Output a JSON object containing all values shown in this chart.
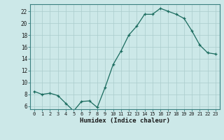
{
  "x": [
    0,
    1,
    2,
    3,
    4,
    5,
    6,
    7,
    8,
    9,
    10,
    11,
    12,
    13,
    14,
    15,
    16,
    17,
    18,
    19,
    20,
    21,
    22,
    23
  ],
  "y": [
    8.5,
    8.0,
    8.2,
    7.8,
    6.5,
    5.2,
    6.8,
    6.9,
    5.8,
    9.2,
    13.0,
    15.3,
    18.0,
    19.5,
    21.5,
    21.5,
    22.5,
    22.0,
    21.5,
    20.8,
    18.7,
    16.3,
    15.0,
    14.8
  ],
  "line_color": "#1a6b5e",
  "marker": "+",
  "bg_color": "#cce8e8",
  "grid_color": "#aacccc",
  "xlabel": "Humidex (Indice chaleur)",
  "yticks": [
    6,
    8,
    10,
    12,
    14,
    16,
    18,
    20,
    22
  ],
  "xticks": [
    0,
    1,
    2,
    3,
    4,
    5,
    6,
    7,
    8,
    9,
    10,
    11,
    12,
    13,
    14,
    15,
    16,
    17,
    18,
    19,
    20,
    21,
    22,
    23
  ],
  "ylim": [
    5.5,
    23.2
  ],
  "xlim": [
    -0.5,
    23.5
  ]
}
